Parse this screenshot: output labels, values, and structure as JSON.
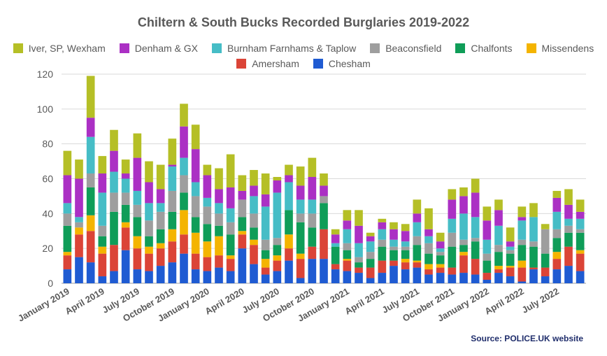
{
  "chart_data": {
    "type": "bar",
    "stacked": true,
    "title": "Chiltern & South Bucks Recorded Burglaries 2019-2022",
    "xlabel": "",
    "ylabel": "",
    "ylim": [
      0,
      120
    ],
    "yticks": [
      0,
      20,
      40,
      60,
      80,
      100,
      120
    ],
    "grid": true,
    "legend_position": "top",
    "source": "Source: POLICE.UK website",
    "categories": [
      "January 2019",
      "February 2019",
      "March 2019",
      "April 2019",
      "May 2019",
      "June 2019",
      "July 2019",
      "August 2019",
      "September 2019",
      "October 2019",
      "November 2019",
      "December 2019",
      "January 2020",
      "February 2020",
      "March 2020",
      "April 2020",
      "May 2020",
      "June 2020",
      "July 2020",
      "August 2020",
      "September 2020",
      "October 2020",
      "November 2020",
      "December 2020",
      "January 2021",
      "February 2021",
      "March 2021",
      "April 2021",
      "May 2021",
      "June 2021",
      "July 2021",
      "August 2021",
      "September 2021",
      "October 2021",
      "November 2021",
      "December 2021",
      "January 2022",
      "February 2022",
      "March 2022",
      "April 2022",
      "May 2022",
      "June 2022",
      "July 2022",
      "August 2022",
      "September 2022"
    ],
    "xtick_labels": [
      "January 2019",
      "April 2019",
      "July 2019",
      "October 2019",
      "January 2020",
      "April 2020",
      "July 2020",
      "October 2020",
      "January 2021",
      "April 2021",
      "July 2021",
      "October 2021",
      "January 2022",
      "April 2022",
      "July 2022"
    ],
    "series": [
      {
        "name": "Chesham",
        "color": "#1f5bd2",
        "values": [
          8,
          15,
          12,
          4,
          7,
          19,
          8,
          7,
          10,
          12,
          17,
          8,
          7,
          9,
          7,
          20,
          11,
          5,
          7,
          13,
          3,
          14,
          14,
          8,
          7,
          6,
          3,
          6,
          10,
          8,
          9,
          5,
          6,
          5,
          6,
          5,
          2,
          6,
          4,
          1,
          8,
          4,
          8,
          10,
          7
        ]
      },
      {
        "name": "Amersham",
        "color": "#db4437",
        "values": [
          8,
          13,
          18,
          13,
          15,
          13,
          12,
          10,
          10,
          12,
          11,
          9,
          8,
          7,
          7,
          8,
          11,
          4,
          6,
          7,
          11,
          7,
          17,
          3,
          6,
          3,
          6,
          7,
          3,
          4,
          3,
          3,
          3,
          4,
          10,
          9,
          4,
          2,
          5,
          8,
          1,
          5,
          6,
          11,
          10
        ]
      },
      {
        "name": "Missendens",
        "color": "#f4b400",
        "values": [
          2,
          4,
          9,
          4,
          0,
          3,
          7,
          4,
          3,
          7,
          14,
          12,
          9,
          11,
          2,
          2,
          3,
          5,
          3,
          8,
          3,
          0,
          0,
          0,
          1,
          0,
          0,
          0,
          0,
          2,
          1,
          3,
          2,
          0,
          2,
          0,
          0,
          2,
          1,
          4,
          0,
          0,
          4,
          0,
          2
        ]
      },
      {
        "name": "Chalfonts",
        "color": "#0f9d58",
        "values": [
          15,
          0,
          16,
          6,
          19,
          10,
          11,
          6,
          8,
          10,
          10,
          9,
          10,
          6,
          12,
          8,
          7,
          5,
          6,
          14,
          18,
          11,
          15,
          10,
          5,
          3,
          5,
          8,
          6,
          5,
          9,
          6,
          5,
          12,
          4,
          10,
          7,
          8,
          7,
          9,
          12,
          8,
          8,
          8,
          10
        ]
      },
      {
        "name": "Beaconsfield",
        "color": "#9e9e9e",
        "values": [
          7,
          3,
          8,
          6,
          11,
          7,
          7,
          9,
          10,
          12,
          10,
          12,
          10,
          7,
          7,
          10,
          8,
          6,
          4,
          0,
          5,
          8,
          4,
          0,
          4,
          3,
          4,
          4,
          2,
          2,
          5,
          6,
          2,
          8,
          3,
          2,
          4,
          4,
          2,
          3,
          3,
          14,
          5,
          4,
          2
        ]
      },
      {
        "name": "Burnham Farnhams & Taplow",
        "color": "#46bdc6",
        "values": [
          6,
          3,
          21,
          19,
          12,
          8,
          8,
          10,
          5,
          14,
          10,
          8,
          5,
          6,
          8,
          0,
          10,
          19,
          26,
          16,
          8,
          8,
          0,
          2,
          8,
          8,
          6,
          6,
          4,
          3,
          8,
          4,
          2,
          8,
          15,
          12,
          8,
          11,
          2,
          11,
          14,
          0,
          10,
          4,
          6
        ]
      },
      {
        "name": "Denham & GX",
        "color": "#ab30c4",
        "values": [
          16,
          22,
          11,
          11,
          12,
          3,
          19,
          12,
          8,
          1,
          18,
          19,
          13,
          8,
          12,
          5,
          6,
          7,
          7,
          4,
          8,
          13,
          6,
          5,
          5,
          10,
          3,
          4,
          6,
          6,
          5,
          4,
          4,
          11,
          10,
          14,
          11,
          9,
          3,
          2,
          0,
          0,
          8,
          8,
          4
        ]
      },
      {
        "name": "Iver, SP, Wexham",
        "color": "#b5bf26",
        "values": [
          14,
          11,
          24,
          10,
          12,
          8,
          14,
          12,
          14,
          15,
          13,
          14,
          6,
          12,
          19,
          9,
          9,
          12,
          2,
          6,
          11,
          11,
          7,
          3,
          6,
          9,
          2,
          2,
          4,
          4,
          8,
          12,
          5,
          6,
          5,
          8,
          8,
          6,
          8,
          6,
          8,
          3,
          4,
          9,
          7
        ]
      }
    ]
  },
  "legend": {
    "row1": [
      "Iver, SP, Wexham",
      "Denham & GX",
      "Burnham Farnhams & Taplow",
      "Beaconsfield",
      "Chalfonts",
      "Missendens"
    ],
    "row2": [
      "Amersham",
      "Chesham"
    ]
  }
}
